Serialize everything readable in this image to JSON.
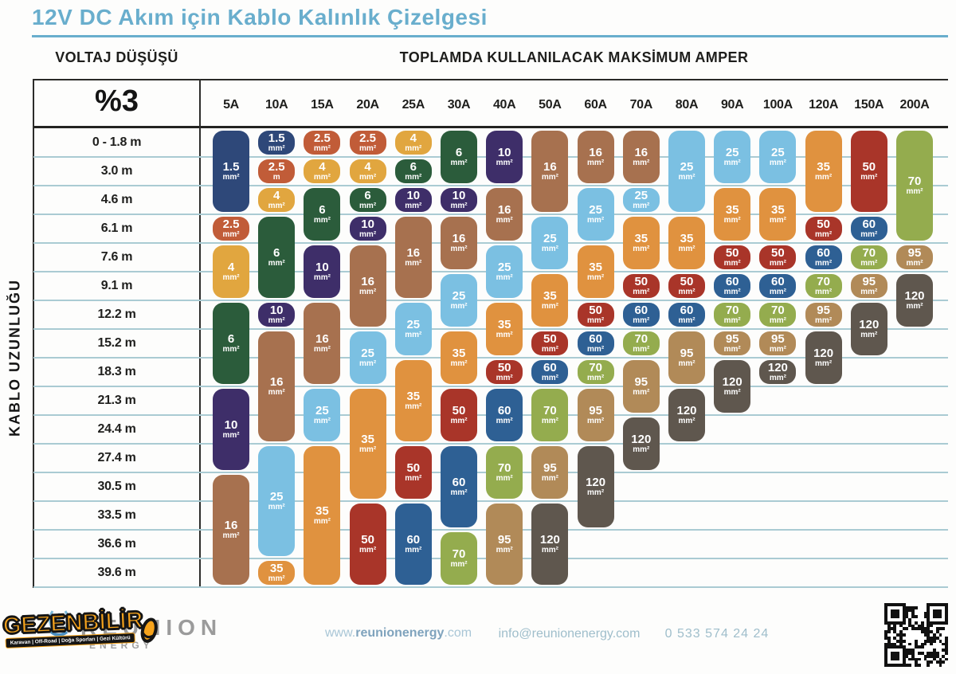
{
  "title": "12V DC Akım için Kablo Kalınlık Çizelgesi",
  "headers": {
    "voltage_drop_label": "VOLTAJ DÜŞÜŞÜ",
    "voltage_drop_value": "%3",
    "amps_label": "TOPLAMDA KULLANILACAK MAKSİMUM AMPER",
    "cable_length_label": "KABLO UZUNLUĞU"
  },
  "colors": {
    "accent_blue": "#69aecd",
    "grid_line": "#aacbd3",
    "header_text": "#1e1e1c",
    "block_text": "#ffffff",
    "brand_gray": "#9b9b9b",
    "watermark_orange": "#f6a31c"
  },
  "chart_data": {
    "type": "heatmap",
    "title": "12V DC Akım için Kablo Kalınlık Çizelgesi",
    "x_label": "TOPLAMDA KULLANILACAK MAKSİMUM AMPER",
    "y_label": "KABLO UZUNLUĞU",
    "voltage_drop": "%3",
    "unit_default": "mm²",
    "columns": [
      "5A",
      "10A",
      "15A",
      "20A",
      "25A",
      "30A",
      "40A",
      "50A",
      "60A",
      "70A",
      "80A",
      "90A",
      "100A",
      "120A",
      "150A",
      "200A"
    ],
    "rows": [
      "0 - 1.8 m",
      "3.0 m",
      "4.6 m",
      "6.1 m",
      "7.6 m",
      "9.1 m",
      "12.2 m",
      "15.2 m",
      "18.3 m",
      "21.3 m",
      "24.4 m",
      "27.4 m",
      "30.5 m",
      "33.5 m",
      "36.6 m",
      "39.6 m"
    ],
    "wire_size_colors": {
      "1.5": "#2e4879",
      "2.5": "#c15c38",
      "4": "#e1a63f",
      "6": "#2b5c3b",
      "10": "#3e2e69",
      "16": "#a7714f",
      "25": "#7bc0e2",
      "35": "#e0923f",
      "50": "#a93529",
      "60": "#2e6094",
      "70": "#94ac4e",
      "95": "#b18a58",
      "120": "#5f574e"
    },
    "blocks_format": "v = wire size value, u = unit override (default mm²), r = start row (1-based), s = rows spanned",
    "blocks": {
      "5A": [
        {
          "v": "1.5",
          "r": 1,
          "s": 3
        },
        {
          "v": "2.5",
          "r": 4,
          "s": 1
        },
        {
          "v": "4",
          "r": 5,
          "s": 2
        },
        {
          "v": "6",
          "r": 7,
          "s": 3
        },
        {
          "v": "10",
          "r": 10,
          "s": 3
        },
        {
          "v": "16",
          "r": 13,
          "s": 4
        }
      ],
      "10A": [
        {
          "v": "1.5",
          "r": 1,
          "s": 1
        },
        {
          "v": "2.5",
          "u": "m",
          "r": 2,
          "s": 1
        },
        {
          "v": "4",
          "r": 3,
          "s": 1
        },
        {
          "v": "6",
          "r": 4,
          "s": 3
        },
        {
          "v": "10",
          "r": 7,
          "s": 1
        },
        {
          "v": "16",
          "r": 8,
          "s": 4
        },
        {
          "v": "25",
          "r": 12,
          "s": 4
        },
        {
          "v": "35",
          "r": 16,
          "s": 1
        }
      ],
      "15A": [
        {
          "v": "2.5",
          "r": 1,
          "s": 1
        },
        {
          "v": "4",
          "r": 2,
          "s": 1
        },
        {
          "v": "6",
          "r": 3,
          "s": 2
        },
        {
          "v": "10",
          "r": 5,
          "s": 2
        },
        {
          "v": "16",
          "r": 7,
          "s": 3
        },
        {
          "v": "25",
          "r": 10,
          "s": 2
        },
        {
          "v": "35",
          "r": 12,
          "s": 5
        }
      ],
      "20A": [
        {
          "v": "2.5",
          "r": 1,
          "s": 1
        },
        {
          "v": "4",
          "r": 2,
          "s": 1
        },
        {
          "v": "6",
          "r": 3,
          "s": 1
        },
        {
          "v": "10",
          "r": 4,
          "s": 1
        },
        {
          "v": "16",
          "r": 5,
          "s": 3
        },
        {
          "v": "25",
          "r": 8,
          "s": 2
        },
        {
          "v": "35",
          "r": 10,
          "s": 4
        },
        {
          "v": "50",
          "r": 14,
          "s": 3
        }
      ],
      "25A": [
        {
          "v": "4",
          "r": 1,
          "s": 1
        },
        {
          "v": "6",
          "r": 2,
          "s": 1
        },
        {
          "v": "10",
          "r": 3,
          "s": 1
        },
        {
          "v": "16",
          "r": 4,
          "s": 3
        },
        {
          "v": "25",
          "r": 7,
          "s": 2
        },
        {
          "v": "35",
          "r": 9,
          "s": 3
        },
        {
          "v": "50",
          "r": 12,
          "s": 2
        },
        {
          "v": "60",
          "r": 14,
          "s": 3
        }
      ],
      "30A": [
        {
          "v": "6",
          "r": 1,
          "s": 2
        },
        {
          "v": "10",
          "r": 3,
          "s": 1
        },
        {
          "v": "16",
          "r": 4,
          "s": 2
        },
        {
          "v": "25",
          "r": 6,
          "s": 2
        },
        {
          "v": "35",
          "r": 8,
          "s": 2
        },
        {
          "v": "50",
          "r": 10,
          "s": 2
        },
        {
          "v": "60",
          "r": 12,
          "s": 3
        },
        {
          "v": "70",
          "r": 15,
          "s": 2
        }
      ],
      "40A": [
        {
          "v": "10",
          "r": 1,
          "s": 2
        },
        {
          "v": "16",
          "r": 3,
          "s": 2
        },
        {
          "v": "25",
          "r": 5,
          "s": 2
        },
        {
          "v": "35",
          "r": 7,
          "s": 2
        },
        {
          "v": "50",
          "r": 9,
          "s": 1
        },
        {
          "v": "60",
          "r": 10,
          "s": 2
        },
        {
          "v": "70",
          "r": 12,
          "s": 2
        },
        {
          "v": "95",
          "r": 14,
          "s": 3
        }
      ],
      "50A": [
        {
          "v": "16",
          "r": 1,
          "s": 3
        },
        {
          "v": "25",
          "r": 4,
          "s": 2
        },
        {
          "v": "35",
          "r": 6,
          "s": 2
        },
        {
          "v": "50",
          "r": 8,
          "s": 1
        },
        {
          "v": "60",
          "r": 9,
          "s": 1
        },
        {
          "v": "70",
          "r": 10,
          "s": 2
        },
        {
          "v": "95",
          "r": 12,
          "s": 2
        },
        {
          "v": "120",
          "r": 14,
          "s": 3
        }
      ],
      "60A": [
        {
          "v": "16",
          "r": 1,
          "s": 2
        },
        {
          "v": "25",
          "r": 3,
          "s": 2
        },
        {
          "v": "35",
          "r": 5,
          "s": 2
        },
        {
          "v": "50",
          "r": 7,
          "s": 1
        },
        {
          "v": "60",
          "r": 8,
          "s": 1
        },
        {
          "v": "70",
          "r": 9,
          "s": 1
        },
        {
          "v": "95",
          "r": 10,
          "s": 2
        },
        {
          "v": "120",
          "r": 12,
          "s": 3
        }
      ],
      "70A": [
        {
          "v": "16",
          "r": 1,
          "s": 2
        },
        {
          "v": "25",
          "r": 3,
          "s": 1
        },
        {
          "v": "35",
          "r": 4,
          "s": 2
        },
        {
          "v": "50",
          "r": 6,
          "s": 1
        },
        {
          "v": "60",
          "r": 7,
          "s": 1
        },
        {
          "v": "70",
          "r": 8,
          "s": 1
        },
        {
          "v": "95",
          "r": 9,
          "s": 2
        },
        {
          "v": "120",
          "r": 11,
          "s": 2
        }
      ],
      "80A": [
        {
          "v": "25",
          "r": 1,
          "s": 3
        },
        {
          "v": "35",
          "r": 4,
          "s": 2
        },
        {
          "v": "50",
          "r": 6,
          "s": 1
        },
        {
          "v": "60",
          "r": 7,
          "s": 1
        },
        {
          "v": "95",
          "r": 8,
          "s": 2
        },
        {
          "v": "120",
          "r": 10,
          "s": 2
        }
      ],
      "90A": [
        {
          "v": "25",
          "r": 1,
          "s": 2
        },
        {
          "v": "35",
          "r": 3,
          "s": 2
        },
        {
          "v": "50",
          "r": 5,
          "s": 1
        },
        {
          "v": "60",
          "r": 6,
          "s": 1
        },
        {
          "v": "70",
          "r": 7,
          "s": 1
        },
        {
          "v": "95",
          "r": 8,
          "s": 1
        },
        {
          "v": "120",
          "r": 9,
          "s": 2
        }
      ],
      "100A": [
        {
          "v": "25",
          "r": 1,
          "s": 2
        },
        {
          "v": "35",
          "r": 3,
          "s": 2
        },
        {
          "v": "50",
          "r": 5,
          "s": 1
        },
        {
          "v": "60",
          "r": 6,
          "s": 1
        },
        {
          "v": "70",
          "r": 7,
          "s": 1
        },
        {
          "v": "95",
          "r": 8,
          "s": 1
        },
        {
          "v": "120",
          "r": 9,
          "s": 1
        }
      ],
      "120A": [
        {
          "v": "35",
          "r": 1,
          "s": 3
        },
        {
          "v": "50",
          "r": 4,
          "s": 1
        },
        {
          "v": "60",
          "r": 5,
          "s": 1
        },
        {
          "v": "70",
          "r": 6,
          "s": 1
        },
        {
          "v": "95",
          "r": 7,
          "s": 1
        },
        {
          "v": "120",
          "r": 8,
          "s": 2
        }
      ],
      "150A": [
        {
          "v": "50",
          "r": 1,
          "s": 3
        },
        {
          "v": "60",
          "r": 4,
          "s": 1
        },
        {
          "v": "70",
          "r": 5,
          "s": 1
        },
        {
          "v": "95",
          "r": 6,
          "s": 1
        },
        {
          "v": "120",
          "r": 7,
          "s": 2
        }
      ],
      "200A": [
        {
          "v": "70",
          "r": 1,
          "s": 4
        },
        {
          "v": "95",
          "r": 5,
          "s": 1
        },
        {
          "v": "120",
          "r": 6,
          "s": 2
        }
      ]
    }
  },
  "footer": {
    "brand": "REUNION",
    "brand_sub": "ENERGY",
    "website_prefix": "www.",
    "website_bold": "reunionenergy",
    "website_suffix": ".com",
    "email": "info@reunionenergy.com",
    "phone": "0 533 574 24 24",
    "watermark": {
      "text": "GEZENBİLİR",
      "subtext": "Karavan | Off-Road | Doğa Sporları | Gezi Kültürü"
    }
  }
}
